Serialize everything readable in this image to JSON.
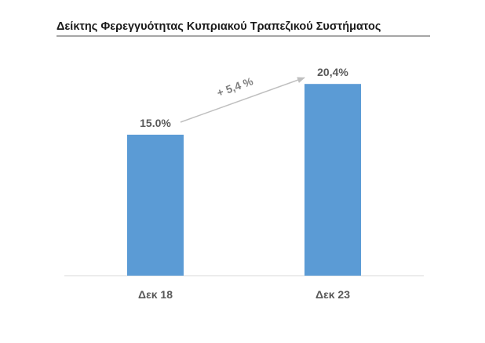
{
  "chart_data": {
    "type": "bar",
    "title": "Δείκτης Φερεγγυότητας Κυπριακού Τραπεζικού Συστήματος",
    "categories": [
      "Δεκ 18",
      "Δεκ 23"
    ],
    "values": [
      15.0,
      20.4
    ],
    "value_labels": [
      "15.0%",
      "20,4%"
    ],
    "ylim": [
      0,
      22
    ],
    "grid": false,
    "bar_color": "#5b9bd5",
    "annotation": {
      "text": "+ 5,4 %",
      "type": "arrow",
      "from_category": "Δεκ 18",
      "to_category": "Δεκ 23",
      "color": "#bfbfbf"
    }
  }
}
